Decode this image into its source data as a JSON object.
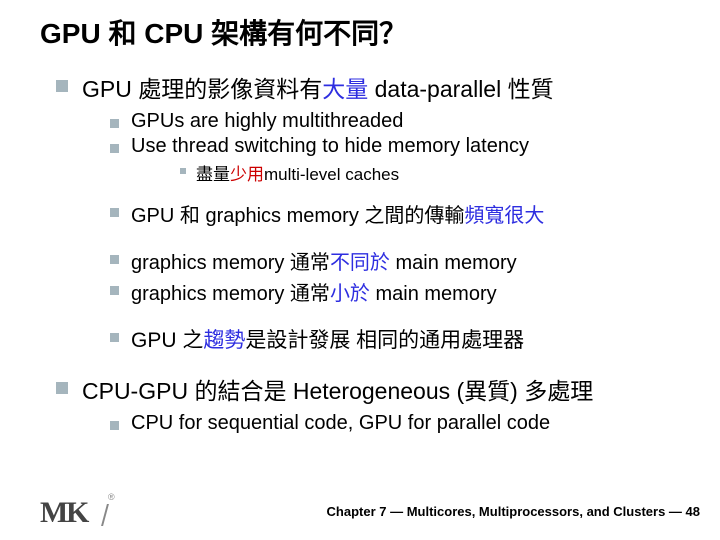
{
  "title": "GPU 和 CPU 架構有何不同？",
  "level1_a": {
    "prefix": "GPU  處理的影像資料有",
    "highlight": "大量",
    "suffix": " data-parallel 性質"
  },
  "level2_items": {
    "a": "GPUs are highly multithreaded",
    "b": "Use thread switching to hide memory latency"
  },
  "level3_a": {
    "prefix": "盡量",
    "highlight": "少用",
    "suffix": "multi-level caches"
  },
  "level2_c": {
    "prefix": "GPU 和 graphics memory 之間的傳輸",
    "highlight": "頻寬很大"
  },
  "level2_d": {
    "prefix": "graphics memory 通常",
    "highlight": "不同於",
    "suffix": " main memory"
  },
  "level2_e": {
    "prefix": "graphics memory 通常",
    "highlight": "小於",
    "suffix": " main memory"
  },
  "level2_f": {
    "prefix": "GPU 之",
    "highlight": "趨勢",
    "suffix": "是設計發展 相同的通用處理器"
  },
  "level1_b": "CPU-GPU 的結合是 Heterogeneous (異質) 多處理",
  "level2_g": "CPU for sequential code, GPU for parallel code",
  "chapter": "Chapter 7 — Multicores, Multiprocessors, and Clusters — 48",
  "colors": {
    "bullet": "#a5b5bd",
    "blue": "#2e2ee0",
    "red": "#cc0000",
    "text": "#000000"
  }
}
